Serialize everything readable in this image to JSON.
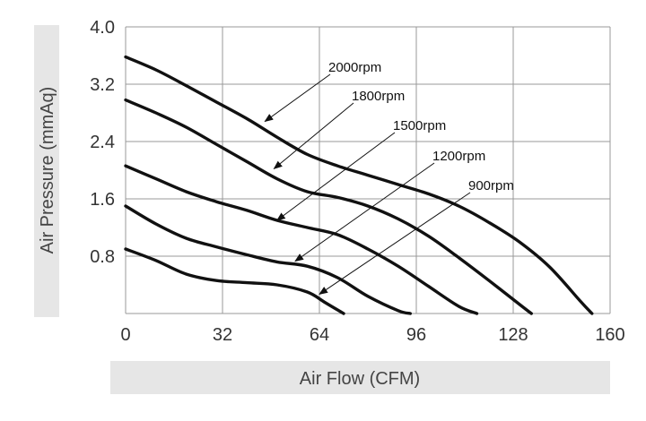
{
  "chart_data": {
    "type": "line",
    "title": "",
    "xlabel": "Air Flow (CFM)",
    "ylabel": "Air Pressure (mmAq)",
    "xlim": [
      0,
      160
    ],
    "ylim": [
      0,
      4.0
    ],
    "x_ticks": [
      "0",
      "32",
      "64",
      "96",
      "128",
      "160"
    ],
    "y_ticks": [
      "0.8",
      "1.6",
      "2.4",
      "3.2",
      "4.0"
    ],
    "grid": true,
    "series": [
      {
        "name": "2000rpm",
        "x": [
          0,
          10,
          20,
          30,
          40,
          50,
          60,
          70,
          80,
          90,
          100,
          110,
          120,
          130,
          140,
          150,
          154
        ],
        "y": [
          3.58,
          3.4,
          3.18,
          2.95,
          2.72,
          2.46,
          2.22,
          2.06,
          1.93,
          1.8,
          1.67,
          1.5,
          1.27,
          1.0,
          0.65,
          0.18,
          0.0
        ]
      },
      {
        "name": "1800rpm",
        "x": [
          0,
          10,
          20,
          30,
          40,
          50,
          60,
          70,
          80,
          90,
          100,
          110,
          120,
          130,
          134
        ],
        "y": [
          2.98,
          2.8,
          2.6,
          2.36,
          2.12,
          1.88,
          1.7,
          1.62,
          1.5,
          1.32,
          1.08,
          0.78,
          0.46,
          0.13,
          0.0
        ]
      },
      {
        "name": "1500rpm",
        "x": [
          0,
          10,
          20,
          30,
          40,
          50,
          60,
          70,
          80,
          90,
          100,
          110,
          116
        ],
        "y": [
          2.06,
          1.88,
          1.7,
          1.56,
          1.44,
          1.3,
          1.2,
          1.1,
          0.9,
          0.66,
          0.38,
          0.1,
          0.0
        ]
      },
      {
        "name": "1200rpm",
        "x": [
          0,
          10,
          20,
          30,
          40,
          50,
          60,
          70,
          80,
          90,
          94
        ],
        "y": [
          1.5,
          1.25,
          1.05,
          0.93,
          0.82,
          0.72,
          0.66,
          0.5,
          0.24,
          0.04,
          0.0
        ]
      },
      {
        "name": "900rpm",
        "x": [
          0,
          10,
          20,
          30,
          40,
          50,
          60,
          66,
          72
        ],
        "y": [
          0.9,
          0.74,
          0.55,
          0.46,
          0.43,
          0.4,
          0.3,
          0.15,
          0.0
        ]
      }
    ],
    "annotations": [
      {
        "text": "2000rpm",
        "series": "2000rpm",
        "arrow_to": [
          46,
          2.68
        ]
      },
      {
        "text": "1800rpm",
        "series": "1800rpm",
        "arrow_to": [
          49,
          2.02
        ]
      },
      {
        "text": "1500rpm",
        "series": "1500rpm",
        "arrow_to": [
          50,
          1.3
        ]
      },
      {
        "text": "1200rpm",
        "series": "1200rpm",
        "arrow_to": [
          56,
          0.73
        ]
      },
      {
        "text": "900rpm",
        "series": "900rpm",
        "arrow_to": [
          64,
          0.27
        ]
      }
    ]
  }
}
